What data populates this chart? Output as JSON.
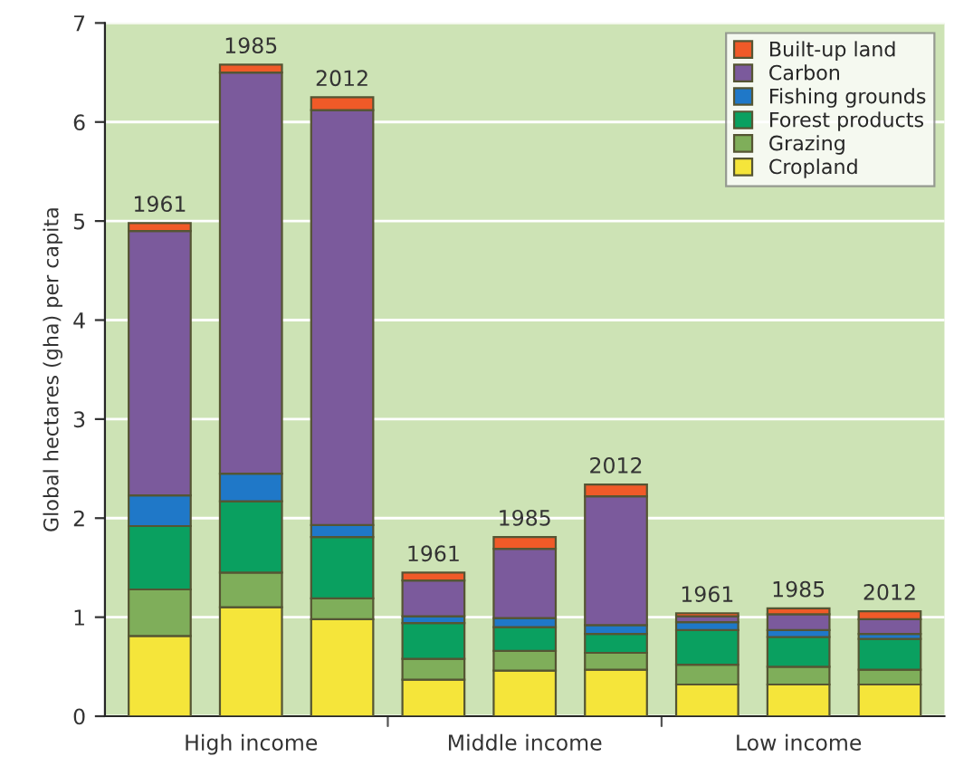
{
  "chart_data": {
    "type": "bar",
    "stacked": true,
    "ylabel": "Global hectares (gha) per capita",
    "categories": [
      "1961",
      "1985",
      "2012",
      "1961",
      "1985",
      "2012",
      "1961",
      "1985",
      "2012"
    ],
    "annotations": [
      "High income",
      "Middle income",
      "Low income"
    ],
    "series": [
      {
        "name": "Cropland",
        "color": "#f5e53a",
        "values": [
          0.81,
          1.1,
          0.98,
          0.37,
          0.46,
          0.47,
          0.32,
          0.32,
          0.32
        ]
      },
      {
        "name": "Grazing",
        "color": "#7fae5a",
        "values": [
          0.47,
          0.35,
          0.21,
          0.21,
          0.2,
          0.17,
          0.2,
          0.18,
          0.15
        ]
      },
      {
        "name": "Forest products",
        "color": "#0aa060",
        "values": [
          0.64,
          0.72,
          0.62,
          0.36,
          0.24,
          0.19,
          0.35,
          0.3,
          0.31
        ]
      },
      {
        "name": "Fishing grounds",
        "color": "#1f78c8",
        "values": [
          0.31,
          0.28,
          0.12,
          0.07,
          0.09,
          0.09,
          0.08,
          0.07,
          0.05
        ]
      },
      {
        "name": "Carbon",
        "color": "#7b5a9c",
        "values": [
          2.67,
          4.05,
          4.19,
          0.36,
          0.7,
          1.3,
          0.06,
          0.16,
          0.15
        ]
      },
      {
        "name": "Built-up land",
        "color": "#f05a28",
        "values": [
          0.08,
          0.08,
          0.13,
          0.08,
          0.12,
          0.12,
          0.03,
          0.06,
          0.08
        ]
      }
    ],
    "ylim": [
      0,
      7
    ],
    "yticks": [
      0,
      1,
      2,
      3,
      4,
      5,
      6,
      7
    ],
    "grid": "y",
    "legend": "top right"
  }
}
